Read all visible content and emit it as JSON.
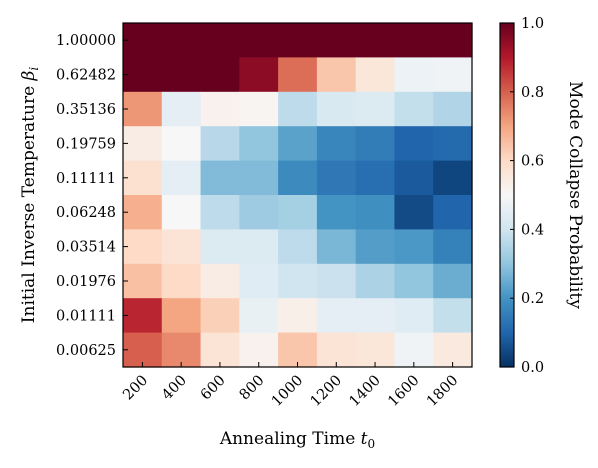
{
  "chart_data": {
    "type": "heatmap",
    "title": "",
    "xlabel": "Annealing Time",
    "xlabel_symbol": "t",
    "xlabel_subscript": "0",
    "ylabel": "Initial Inverse Temperature",
    "ylabel_symbol": "β",
    "ylabel_subscript": "i",
    "x_categories": [
      "200",
      "400",
      "600",
      "800",
      "1000",
      "1200",
      "1400",
      "1600",
      "1800"
    ],
    "y_categories": [
      "1.00000",
      "0.62482",
      "0.35136",
      "0.19759",
      "0.11111",
      "0.06248",
      "0.03514",
      "0.01976",
      "0.01111",
      "0.00625"
    ],
    "values": [
      [
        1.0,
        1.0,
        1.0,
        1.0,
        1.0,
        1.0,
        1.0,
        1.0,
        1.0
      ],
      [
        1.0,
        1.0,
        1.0,
        0.95,
        0.78,
        0.64,
        0.56,
        0.47,
        0.48
      ],
      [
        0.72,
        0.45,
        0.52,
        0.51,
        0.37,
        0.42,
        0.43,
        0.38,
        0.35
      ],
      [
        0.54,
        0.5,
        0.36,
        0.3,
        0.23,
        0.17,
        0.15,
        0.1,
        0.11
      ],
      [
        0.58,
        0.45,
        0.28,
        0.28,
        0.18,
        0.14,
        0.12,
        0.08,
        0.04
      ],
      [
        0.68,
        0.5,
        0.37,
        0.32,
        0.33,
        0.2,
        0.19,
        0.05,
        0.1
      ],
      [
        0.6,
        0.57,
        0.43,
        0.43,
        0.37,
        0.27,
        0.22,
        0.21,
        0.16
      ],
      [
        0.65,
        0.6,
        0.54,
        0.44,
        0.4,
        0.39,
        0.34,
        0.3,
        0.25
      ],
      [
        0.88,
        0.7,
        0.62,
        0.46,
        0.53,
        0.45,
        0.45,
        0.44,
        0.38
      ],
      [
        0.8,
        0.74,
        0.57,
        0.52,
        0.64,
        0.57,
        0.56,
        0.48,
        0.55
      ]
    ],
    "colorbar": {
      "label": "Mode Collapse Probability",
      "min": 0.0,
      "max": 1.0,
      "ticks": [
        "0.0",
        "0.2",
        "0.4",
        "0.6",
        "0.8",
        "1.0"
      ],
      "colormap": "RdBu_r"
    }
  }
}
